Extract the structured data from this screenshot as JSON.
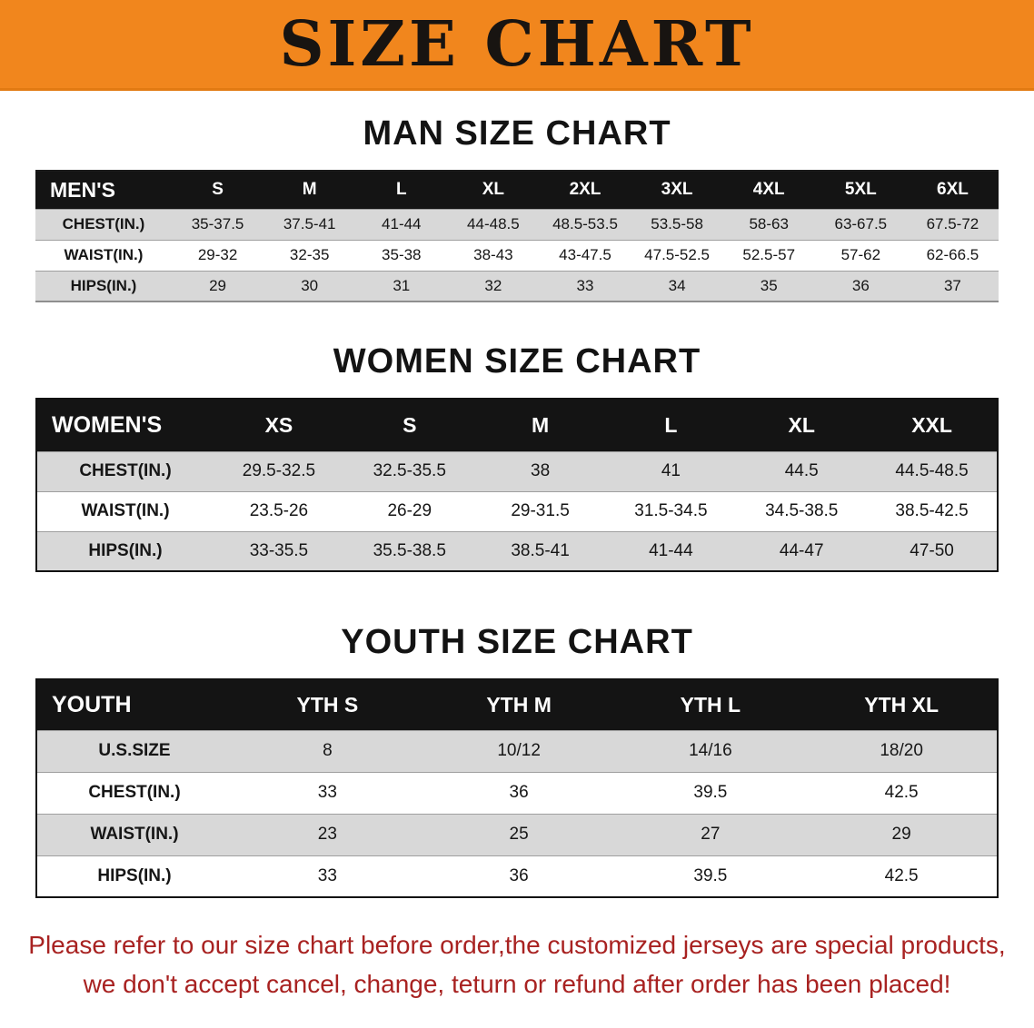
{
  "banner": {
    "title": "SIZE CHART",
    "bg_color": "#f1861d",
    "text_color": "#181411"
  },
  "sections": [
    {
      "id": "men",
      "heading": "MAN SIZE CHART",
      "header": [
        "MEN'S",
        "S",
        "M",
        "L",
        "XL",
        "2XL",
        "3XL",
        "4XL",
        "5XL",
        "6XL"
      ],
      "rows": [
        {
          "label": "CHEST(IN.)",
          "values": [
            "35-37.5",
            "37.5-41",
            "41-44",
            "44-48.5",
            "48.5-53.5",
            "53.5-58",
            "58-63",
            "63-67.5",
            "67.5-72"
          ]
        },
        {
          "label": "WAIST(IN.)",
          "values": [
            "29-32",
            "32-35",
            "35-38",
            "38-43",
            "43-47.5",
            "47.5-52.5",
            "52.5-57",
            "57-62",
            "62-66.5"
          ]
        },
        {
          "label": "HIPS(IN.)",
          "values": [
            "29",
            "30",
            "31",
            "32",
            "33",
            "34",
            "35",
            "36",
            "37"
          ]
        }
      ]
    },
    {
      "id": "women",
      "heading": "WOMEN SIZE CHART",
      "header": [
        "WOMEN'S",
        "XS",
        "S",
        "M",
        "L",
        "XL",
        "XXL"
      ],
      "rows": [
        {
          "label": "CHEST(IN.)",
          "values": [
            "29.5-32.5",
            "32.5-35.5",
            "38",
            "41",
            "44.5",
            "44.5-48.5"
          ]
        },
        {
          "label": "WAIST(IN.)",
          "values": [
            "23.5-26",
            "26-29",
            "29-31.5",
            "31.5-34.5",
            "34.5-38.5",
            "38.5-42.5"
          ]
        },
        {
          "label": "HIPS(IN.)",
          "values": [
            "33-35.5",
            "35.5-38.5",
            "38.5-41",
            "41-44",
            "44-47",
            "47-50"
          ]
        }
      ]
    },
    {
      "id": "youth",
      "heading": "YOUTH SIZE CHART",
      "header": [
        "YOUTH",
        "YTH S",
        "YTH M",
        "YTH L",
        "YTH XL"
      ],
      "rows": [
        {
          "label": "U.S.SIZE",
          "values": [
            "8",
            "10/12",
            "14/16",
            "18/20"
          ]
        },
        {
          "label": "CHEST(IN.)",
          "values": [
            "33",
            "36",
            "39.5",
            "42.5"
          ]
        },
        {
          "label": "WAIST(IN.)",
          "values": [
            "23",
            "25",
            "27",
            "29"
          ]
        },
        {
          "label": "HIPS(IN.)",
          "values": [
            "33",
            "36",
            "39.5",
            "42.5"
          ]
        }
      ]
    }
  ],
  "footer": {
    "line1": "Please refer to our size chart before order,the customized jerseys are special products,",
    "line2": "we don't accept cancel, change, teturn or refund after order has been placed!",
    "text_color": "#a82221"
  }
}
